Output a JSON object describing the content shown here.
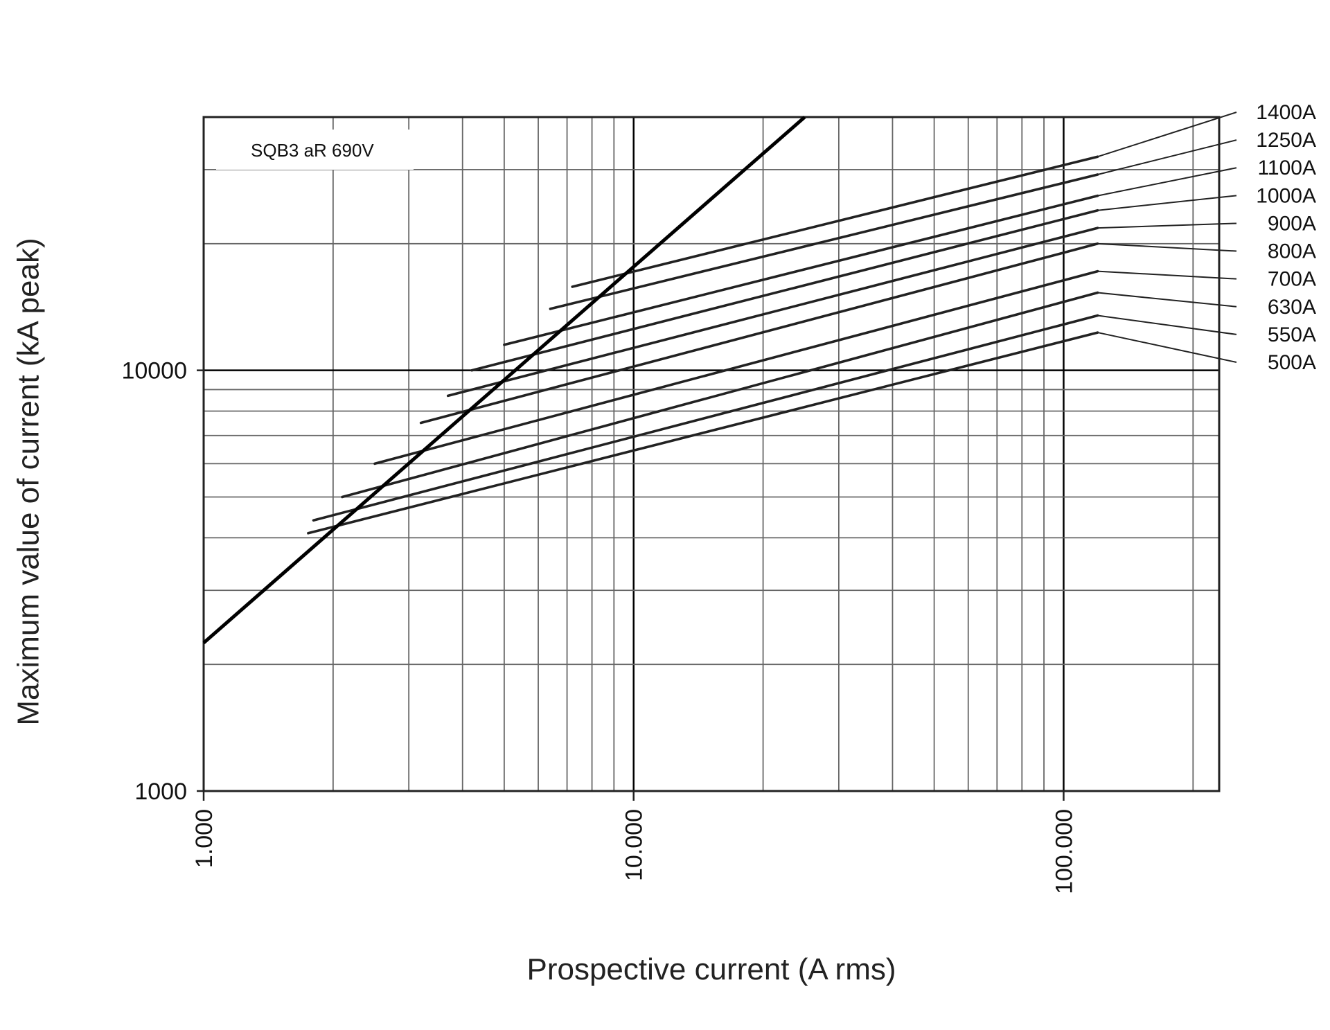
{
  "chart_data": {
    "type": "line",
    "annotation": "SQB3 aR 690V",
    "xlabel": "Prospective current (A rms)",
    "ylabel": "Maximum value of current (kA peak)",
    "x_scale": "log",
    "y_scale": "log",
    "xlim": [
      1000,
      230000
    ],
    "ylim": [
      1000,
      40000
    ],
    "x_ticks": [
      {
        "value": 1000,
        "label": "1.000"
      },
      {
        "value": 10000,
        "label": "10.000"
      },
      {
        "value": 100000,
        "label": "100.000"
      }
    ],
    "y_ticks": [
      {
        "value": 1000,
        "label": "1000"
      },
      {
        "value": 10000,
        "label": "10000"
      }
    ],
    "grid": true,
    "max_asymmetrical_line": {
      "x": [
        1000,
        25000
      ],
      "y": [
        2250,
        40000
      ]
    },
    "series": [
      {
        "name": "1400A",
        "x": [
          7200,
          120000
        ],
        "y": [
          15800,
          32200
        ]
      },
      {
        "name": "1250A",
        "x": [
          6400,
          120000
        ],
        "y": [
          14000,
          29200
        ]
      },
      {
        "name": "1100A",
        "x": [
          5000,
          120000
        ],
        "y": [
          11500,
          26000
        ]
      },
      {
        "name": "1000A",
        "x": [
          4200,
          120000
        ],
        "y": [
          10000,
          24000
        ]
      },
      {
        "name": "900A",
        "x": [
          3700,
          120000
        ],
        "y": [
          8700,
          21800
        ]
      },
      {
        "name": "800A",
        "x": [
          3200,
          120000
        ],
        "y": [
          7500,
          20000
        ]
      },
      {
        "name": "700A",
        "x": [
          2500,
          120000
        ],
        "y": [
          6000,
          17200
        ]
      },
      {
        "name": "630A",
        "x": [
          2100,
          120000
        ],
        "y": [
          5000,
          15300
        ]
      },
      {
        "name": "550A",
        "x": [
          1800,
          120000
        ],
        "y": [
          4400,
          13500
        ]
      },
      {
        "name": "500A",
        "x": [
          1750,
          120000
        ],
        "y": [
          4100,
          12300
        ]
      }
    ]
  }
}
